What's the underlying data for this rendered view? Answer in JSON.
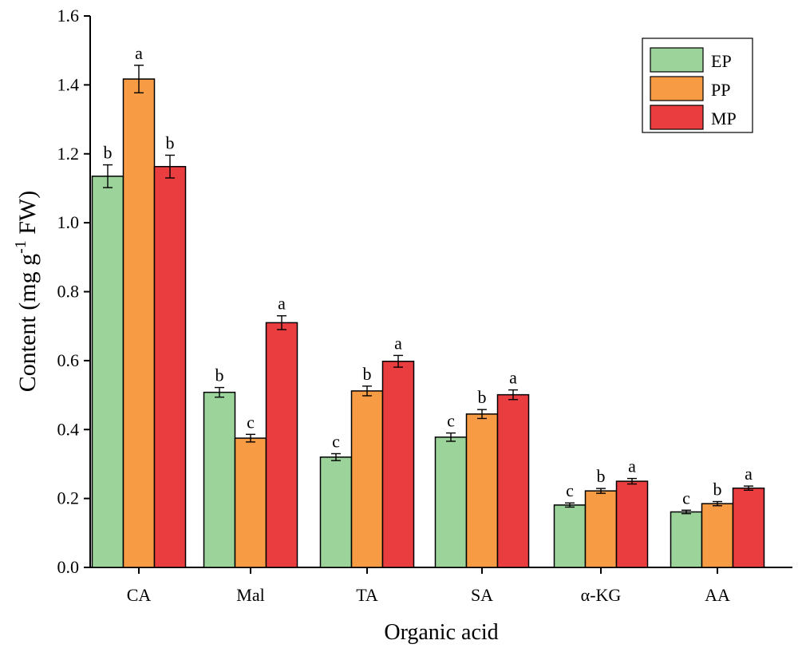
{
  "chart_data": {
    "type": "bar",
    "title": "",
    "xlabel": "Organic acid",
    "ylabel": {
      "main": "Content (mg g",
      "sup": "-1",
      "tail": " FW)"
    },
    "ylim": [
      0,
      1.6
    ],
    "yticks": [
      "0.0",
      "0.2",
      "0.4",
      "0.6",
      "0.8",
      "1.0",
      "1.2",
      "1.4",
      "1.6"
    ],
    "ytick_values": [
      0,
      0.2,
      0.4,
      0.6,
      0.8,
      1.0,
      1.2,
      1.4,
      1.6
    ],
    "categories": [
      "CA",
      "Mal",
      "TA",
      "SA",
      "α-KG",
      "AA"
    ],
    "series": [
      {
        "name": "EP",
        "color": "#9bd39a",
        "values": [
          1.135,
          0.508,
          0.32,
          0.378,
          0.181,
          0.161
        ],
        "errors": [
          0.033,
          0.014,
          0.01,
          0.012,
          0.006,
          0.005
        ],
        "sig": [
          "b",
          "b",
          "c",
          "c",
          "c",
          "c"
        ]
      },
      {
        "name": "PP",
        "color": "#f89b45",
        "values": [
          1.417,
          0.375,
          0.512,
          0.445,
          0.222,
          0.185
        ],
        "errors": [
          0.04,
          0.011,
          0.014,
          0.013,
          0.007,
          0.006
        ],
        "sig": [
          "a",
          "c",
          "b",
          "b",
          "b",
          "b"
        ]
      },
      {
        "name": "MP",
        "color": "#ea3d3f",
        "values": [
          1.163,
          0.71,
          0.598,
          0.501,
          0.25,
          0.23
        ],
        "errors": [
          0.033,
          0.02,
          0.017,
          0.014,
          0.008,
          0.006
        ],
        "sig": [
          "b",
          "a",
          "a",
          "a",
          "a",
          "a"
        ]
      }
    ],
    "legend_position": "top-right"
  }
}
